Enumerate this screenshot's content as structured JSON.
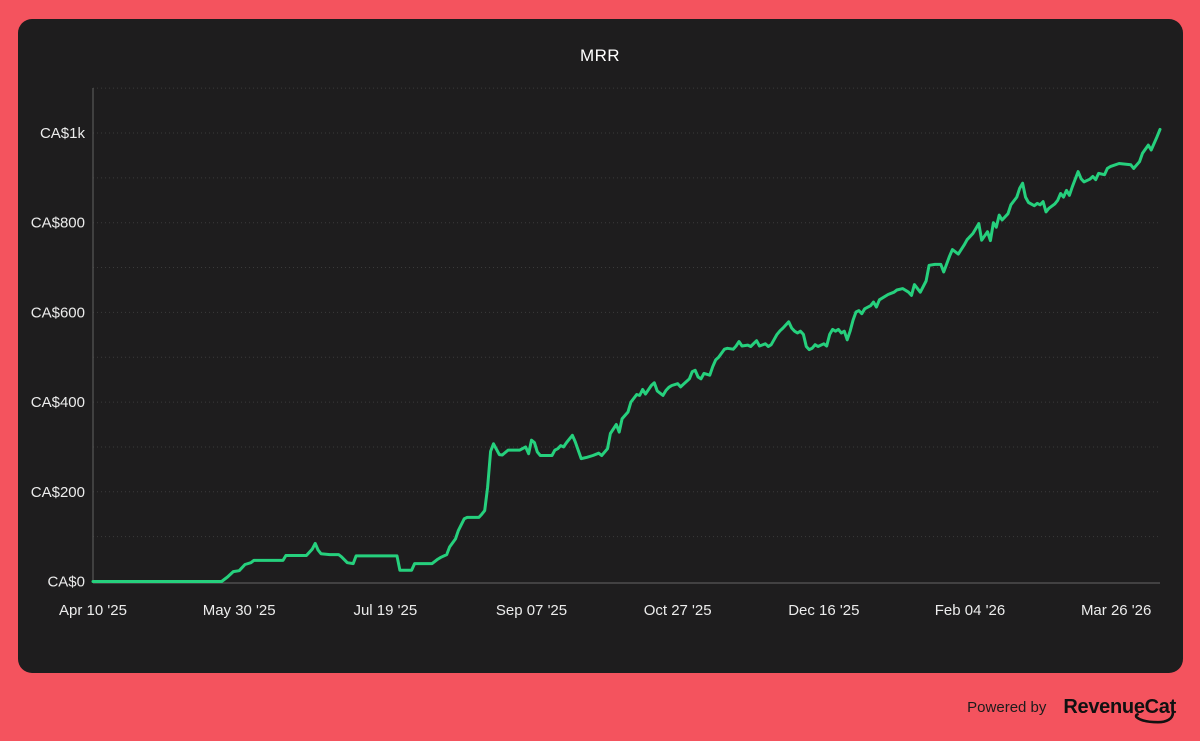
{
  "colors": {
    "background": "#F4535E",
    "card": "#1E1D1E",
    "line": "#26D07D",
    "grid": "#3B3B3B",
    "axis": "#575757",
    "tick_text": "#ECECEC",
    "title_text": "#FFFFFF",
    "footer_text": "#1C1C1C",
    "logo_text": "#111111"
  },
  "footer": {
    "powered_by": "Powered by",
    "brand": "RevenueCat"
  },
  "chart_data": {
    "type": "line",
    "title": "MRR",
    "currency": "CAD",
    "legend": "none",
    "grid": "dotted horizontal lines",
    "grid_step": 100,
    "ylim": [
      0,
      1100
    ],
    "x_span_days": 365,
    "yticks": [
      {
        "value": 0,
        "label": "CA$0"
      },
      {
        "value": 200,
        "label": "CA$200"
      },
      {
        "value": 400,
        "label": "CA$400"
      },
      {
        "value": 600,
        "label": "CA$600"
      },
      {
        "value": 800,
        "label": "CA$800"
      },
      {
        "value": 1000,
        "label": "CA$1k"
      }
    ],
    "xticks": [
      {
        "day": 0,
        "label": "Apr 10 '25"
      },
      {
        "day": 50,
        "label": "May 30 '25"
      },
      {
        "day": 100,
        "label": "Jul 19 '25"
      },
      {
        "day": 150,
        "label": "Sep 07 '25"
      },
      {
        "day": 200,
        "label": "Oct 27 '25"
      },
      {
        "day": 250,
        "label": "Dec 16 '25"
      },
      {
        "day": 300,
        "label": "Feb 04 '26"
      },
      {
        "day": 350,
        "label": "Mar 26 '26"
      }
    ],
    "series": [
      {
        "name": "MRR",
        "color": "#26D07D",
        "points": [
          [
            0,
            0
          ],
          [
            44,
            0
          ],
          [
            46,
            10
          ],
          [
            48,
            22
          ],
          [
            50,
            24
          ],
          [
            52,
            38
          ],
          [
            54,
            42
          ],
          [
            55,
            47
          ],
          [
            65,
            47
          ],
          [
            66,
            58
          ],
          [
            73,
            58
          ],
          [
            75,
            72
          ],
          [
            76,
            85
          ],
          [
            77,
            70
          ],
          [
            78,
            62
          ],
          [
            81,
            60
          ],
          [
            84,
            60
          ],
          [
            85,
            55
          ],
          [
            87,
            42
          ],
          [
            89,
            40
          ],
          [
            90,
            57
          ],
          [
            104,
            57
          ],
          [
            105,
            25
          ],
          [
            109,
            25
          ],
          [
            110,
            40
          ],
          [
            116,
            40
          ],
          [
            118,
            50
          ],
          [
            119,
            54
          ],
          [
            121,
            60
          ],
          [
            122,
            77
          ],
          [
            124,
            95
          ],
          [
            125,
            114
          ],
          [
            127,
            140
          ],
          [
            128,
            143
          ],
          [
            132,
            143
          ],
          [
            133,
            150
          ],
          [
            134,
            158
          ],
          [
            135,
            210
          ],
          [
            136,
            290
          ],
          [
            137,
            307
          ],
          [
            139,
            283
          ],
          [
            140,
            282
          ],
          [
            142,
            293
          ],
          [
            146,
            293
          ],
          [
            148,
            300
          ],
          [
            149,
            285
          ],
          [
            150,
            315
          ],
          [
            151,
            310
          ],
          [
            152,
            289
          ],
          [
            153,
            281
          ],
          [
            157,
            281
          ],
          [
            158,
            293
          ],
          [
            159,
            296
          ],
          [
            160,
            303
          ],
          [
            161,
            300
          ],
          [
            162,
            310
          ],
          [
            164,
            326
          ],
          [
            165,
            311
          ],
          [
            166,
            292
          ],
          [
            167,
            274
          ],
          [
            169,
            277
          ],
          [
            171,
            281
          ],
          [
            173,
            286
          ],
          [
            174,
            281
          ],
          [
            176,
            296
          ],
          [
            177,
            330
          ],
          [
            179,
            350
          ],
          [
            180,
            333
          ],
          [
            181,
            363
          ],
          [
            183,
            378
          ],
          [
            184,
            400
          ],
          [
            186,
            417
          ],
          [
            187,
            415
          ],
          [
            188,
            428
          ],
          [
            189,
            418
          ],
          [
            191,
            437
          ],
          [
            192,
            443
          ],
          [
            193,
            425
          ],
          [
            195,
            415
          ],
          [
            196,
            426
          ],
          [
            197,
            433
          ],
          [
            198,
            437
          ],
          [
            200,
            441
          ],
          [
            201,
            434
          ],
          [
            202,
            440
          ],
          [
            204,
            452
          ],
          [
            205,
            468
          ],
          [
            206,
            471
          ],
          [
            207,
            456
          ],
          [
            208,
            452
          ],
          [
            209,
            464
          ],
          [
            211,
            460
          ],
          [
            212,
            479
          ],
          [
            213,
            494
          ],
          [
            214,
            500
          ],
          [
            216,
            518
          ],
          [
            217,
            520
          ],
          [
            219,
            518
          ],
          [
            220,
            525
          ],
          [
            221,
            535
          ],
          [
            222,
            525
          ],
          [
            224,
            527
          ],
          [
            225,
            524
          ],
          [
            227,
            537
          ],
          [
            228,
            525
          ],
          [
            230,
            530
          ],
          [
            231,
            524
          ],
          [
            232,
            528
          ],
          [
            234,
            551
          ],
          [
            235,
            559
          ],
          [
            236,
            565
          ],
          [
            238,
            579
          ],
          [
            239,
            565
          ],
          [
            240,
            558
          ],
          [
            241,
            554
          ],
          [
            242,
            558
          ],
          [
            243,
            551
          ],
          [
            244,
            524
          ],
          [
            245,
            517
          ],
          [
            246,
            520
          ],
          [
            247,
            528
          ],
          [
            248,
            524
          ],
          [
            250,
            530
          ],
          [
            251,
            525
          ],
          [
            252,
            551
          ],
          [
            253,
            562
          ],
          [
            254,
            558
          ],
          [
            255,
            562
          ],
          [
            256,
            554
          ],
          [
            257,
            558
          ],
          [
            258,
            539
          ],
          [
            259,
            558
          ],
          [
            260,
            583
          ],
          [
            261,
            601
          ],
          [
            262,
            604
          ],
          [
            263,
            597
          ],
          [
            264,
            608
          ],
          [
            266,
            615
          ],
          [
            267,
            623
          ],
          [
            268,
            612
          ],
          [
            269,
            628
          ],
          [
            272,
            640
          ],
          [
            274,
            645
          ],
          [
            275,
            650
          ],
          [
            277,
            653
          ],
          [
            279,
            645
          ],
          [
            280,
            638
          ],
          [
            281,
            662
          ],
          [
            283,
            645
          ],
          [
            285,
            670
          ],
          [
            286,
            705
          ],
          [
            288,
            707
          ],
          [
            290,
            707
          ],
          [
            291,
            690
          ],
          [
            293,
            725
          ],
          [
            294,
            740
          ],
          [
            296,
            730
          ],
          [
            298,
            750
          ],
          [
            299,
            762
          ],
          [
            301,
            776
          ],
          [
            303,
            798
          ],
          [
            304,
            761
          ],
          [
            306,
            780
          ],
          [
            307,
            760
          ],
          [
            308,
            800
          ],
          [
            309,
            790
          ],
          [
            310,
            817
          ],
          [
            311,
            806
          ],
          [
            313,
            820
          ],
          [
            314,
            840
          ],
          [
            316,
            857
          ],
          [
            317,
            877
          ],
          [
            318,
            888
          ],
          [
            319,
            857
          ],
          [
            320,
            845
          ],
          [
            322,
            838
          ],
          [
            323,
            843
          ],
          [
            324,
            840
          ],
          [
            325,
            847
          ],
          [
            326,
            824
          ],
          [
            327,
            832
          ],
          [
            329,
            842
          ],
          [
            330,
            850
          ],
          [
            331,
            865
          ],
          [
            332,
            857
          ],
          [
            333,
            872
          ],
          [
            334,
            861
          ],
          [
            335,
            880
          ],
          [
            337,
            914
          ],
          [
            338,
            898
          ],
          [
            339,
            891
          ],
          [
            341,
            897
          ],
          [
            342,
            903
          ],
          [
            343,
            896
          ],
          [
            344,
            910
          ],
          [
            346,
            907
          ],
          [
            347,
            921
          ],
          [
            348,
            925
          ],
          [
            351,
            932
          ],
          [
            355,
            929
          ],
          [
            356,
            921
          ],
          [
            358,
            936
          ],
          [
            359,
            955
          ],
          [
            361,
            973
          ],
          [
            362,
            962
          ],
          [
            364,
            992
          ],
          [
            365,
            1008
          ]
        ]
      }
    ]
  }
}
